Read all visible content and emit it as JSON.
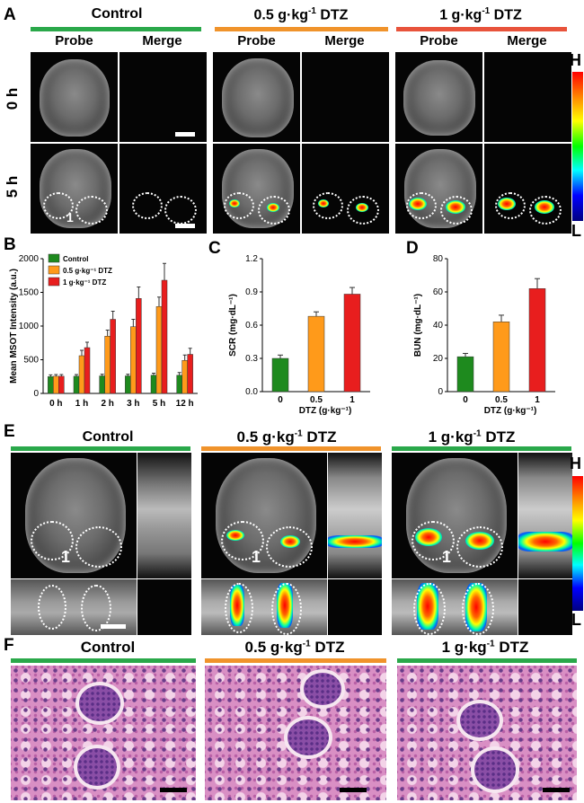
{
  "panel_labels": {
    "a": "A",
    "b": "B",
    "c": "C",
    "d": "D",
    "e": "E",
    "f": "F"
  },
  "groups": {
    "control": "Control",
    "low": "0.5 g·kg",
    "low_sup": "-1",
    "low_unit": " DTZ",
    "high": "1 g·kg",
    "high_sup": "-1",
    "high_unit": " DTZ"
  },
  "panelA": {
    "probe": "Probe",
    "merge": "Merge",
    "row0": "0 h",
    "row5": "5 h",
    "kidney_mark": "1"
  },
  "colorbar": {
    "high": "H",
    "low": "L"
  },
  "colors": {
    "control": "#2aa84a",
    "low": "#f0932b",
    "high": "#e8533b",
    "green_bar": "#1e8a1e",
    "orange_bar": "#ff9a1a",
    "red_bar": "#e81e1e"
  },
  "chart_data": [
    {
      "type": "bar",
      "title": "",
      "xlabel": "",
      "ylabel": "Mean MSOT Intensity (a.u.)",
      "ylim": [
        0,
        2000
      ],
      "yticks": [
        "0",
        "500",
        "1000",
        "1500",
        "2000"
      ],
      "categories": [
        "0 h",
        "1 h",
        "2 h",
        "3 h",
        "5 h",
        "12 h"
      ],
      "legend": [
        "Control",
        "0.5 g·kg⁻¹ DTZ",
        "1 g·kg⁻¹ DTZ"
      ],
      "series": [
        {
          "name": "Control",
          "values": [
            250,
            255,
            260,
            260,
            270,
            270
          ],
          "err": [
            25,
            25,
            25,
            25,
            30,
            40
          ]
        },
        {
          "name": "0.5 g·kg⁻¹ DTZ",
          "values": [
            255,
            560,
            850,
            990,
            1290,
            490
          ],
          "err": [
            25,
            80,
            90,
            110,
            140,
            80
          ]
        },
        {
          "name": "1 g·kg⁻¹ DTZ",
          "values": [
            255,
            680,
            1100,
            1410,
            1680,
            580
          ],
          "err": [
            25,
            80,
            120,
            170,
            250,
            90
          ]
        }
      ]
    },
    {
      "type": "bar",
      "title": "",
      "xlabel": "DTZ (g·kg⁻¹)",
      "ylabel": "SCR (mg·dL⁻¹)",
      "ylim": [
        0,
        1.2
      ],
      "yticks": [
        "0.0",
        "0.3",
        "0.6",
        "0.9",
        "1.2"
      ],
      "categories": [
        "0",
        "0.5",
        "1"
      ],
      "values": [
        0.3,
        0.68,
        0.88
      ],
      "err": [
        0.03,
        0.04,
        0.06
      ]
    },
    {
      "type": "bar",
      "title": "",
      "xlabel": "DTZ (g·kg⁻¹)",
      "ylabel": "BUN (mg·dL⁻¹)",
      "ylim": [
        0,
        80
      ],
      "yticks": [
        "0",
        "20",
        "40",
        "60",
        "80"
      ],
      "categories": [
        "0",
        "0.5",
        "1"
      ],
      "values": [
        21,
        42,
        62
      ],
      "err": [
        2,
        4,
        6
      ]
    }
  ]
}
